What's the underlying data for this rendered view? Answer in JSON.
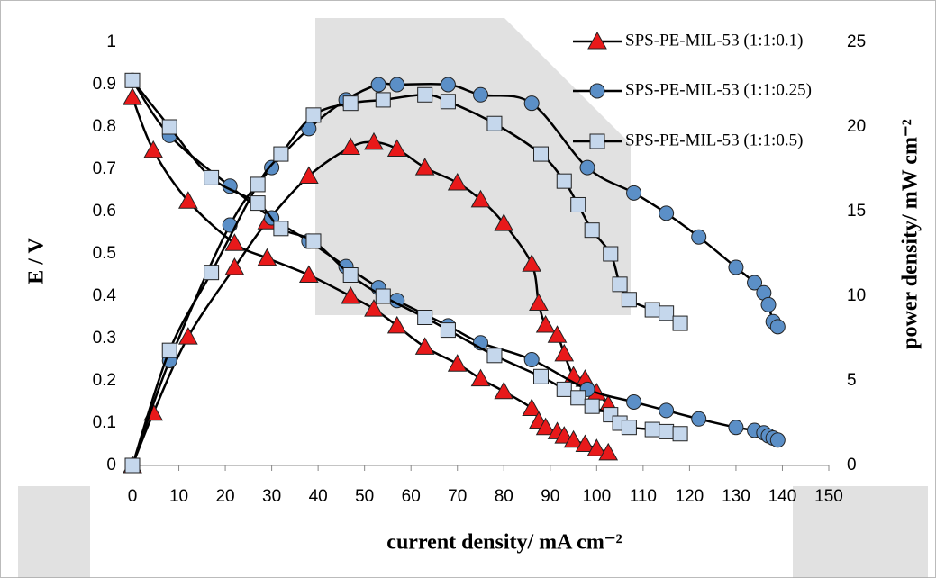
{
  "chart_data": {
    "type": "line",
    "xlabel": "current density/ mA cm⁻²",
    "ylabel": "E / V",
    "y2label": "power density/ mW cm⁻²",
    "xlim": [
      0,
      150
    ],
    "xticks": [
      0,
      10,
      20,
      30,
      40,
      50,
      60,
      70,
      80,
      90,
      100,
      110,
      120,
      130,
      140,
      150
    ],
    "ylim": [
      0,
      1
    ],
    "yticks": [
      0,
      0.1,
      0.2,
      0.3,
      0.4,
      0.5,
      0.6,
      0.7,
      0.8,
      0.9,
      1
    ],
    "y2lim": [
      0,
      25
    ],
    "y2ticks": [
      0,
      5,
      10,
      15,
      20,
      25
    ],
    "legend": "top-right",
    "series": [
      {
        "name": "SPS-PE-MIL-53 (1:1:0.1)",
        "color": "#e8191a",
        "marker": "triangle",
        "x": [
          0,
          4.5,
          12,
          22,
          29,
          38,
          47,
          52,
          57,
          63,
          70,
          75,
          80,
          86,
          87.5,
          89,
          91.5,
          93,
          95,
          97.5,
          100,
          102.5
        ],
        "values": [
          0.87,
          0.745,
          0.625,
          0.525,
          0.49,
          0.45,
          0.4,
          0.37,
          0.33,
          0.28,
          0.24,
          0.205,
          0.175,
          0.135,
          0.105,
          0.09,
          0.08,
          0.07,
          0.06,
          0.05,
          0.04,
          0.03
        ],
        "power_values": [
          0,
          3.1,
          7.6,
          11.7,
          14.4,
          17.1,
          18.8,
          19.1,
          18.7,
          17.6,
          16.7,
          15.7,
          14.3,
          11.9,
          9.6,
          8.3,
          7.7,
          6.6,
          5.3,
          5.1,
          4.3,
          3.6
        ]
      },
      {
        "name": "SPS-PE-MIL-53 (1:1:0.25)",
        "color": "#5b8fc7",
        "marker": "circle",
        "x": [
          0,
          8,
          21,
          30,
          38,
          46,
          53,
          57,
          68,
          75,
          86,
          98,
          108,
          115,
          122,
          130,
          134,
          136,
          137,
          138,
          139
        ],
        "values": [
          0.91,
          0.78,
          0.66,
          0.585,
          0.53,
          0.47,
          0.42,
          0.39,
          0.33,
          0.29,
          0.25,
          0.18,
          0.15,
          0.13,
          0.11,
          0.09,
          0.083,
          0.077,
          0.07,
          0.065,
          0.06
        ],
        "power_values": [
          0,
          6.2,
          14.2,
          17.6,
          19.9,
          21.6,
          22.5,
          22.5,
          22.5,
          21.9,
          21.4,
          17.6,
          16.1,
          14.9,
          13.5,
          11.7,
          10.8,
          10.2,
          9.5,
          8.5,
          8.2
        ]
      },
      {
        "name": "SPS-PE-MIL-53 (1:1:0.5)",
        "color": "#c5d7ec",
        "marker": "square",
        "x": [
          0,
          8,
          17,
          27,
          32,
          39,
          47,
          54,
          63,
          68,
          78,
          88,
          93,
          96,
          99,
          103,
          105,
          107,
          112,
          115,
          118
        ],
        "values": [
          0.91,
          0.8,
          0.68,
          0.62,
          0.56,
          0.53,
          0.45,
          0.4,
          0.35,
          0.32,
          0.26,
          0.21,
          0.18,
          0.16,
          0.14,
          0.12,
          0.1,
          0.09,
          0.085,
          0.08,
          0.075
        ],
        "power_values": [
          0,
          6.8,
          11.4,
          16.6,
          18.4,
          20.7,
          21.4,
          21.6,
          21.9,
          21.5,
          20.2,
          18.4,
          16.8,
          15.4,
          13.9,
          12.5,
          10.7,
          9.8,
          9.2,
          9,
          8.4
        ]
      }
    ]
  }
}
